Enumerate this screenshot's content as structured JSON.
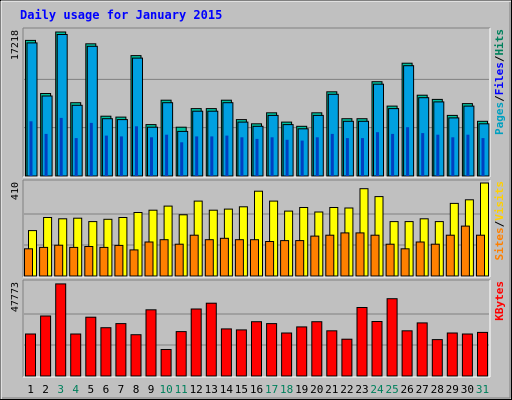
{
  "chart_data": [
    {
      "type": "bar",
      "title": "Daily usage for January 2015",
      "panel": "top",
      "ylabel_parts": [
        "Pages",
        "/",
        "Files",
        "/",
        "Hits"
      ],
      "ymax_label": "17218",
      "ylim": [
        0,
        17218
      ],
      "categories": [
        "1",
        "2",
        "3",
        "4",
        "5",
        "6",
        "7",
        "8",
        "9",
        "10",
        "11",
        "12",
        "13",
        "14",
        "15",
        "16",
        "17",
        "18",
        "19",
        "20",
        "21",
        "22",
        "23",
        "24",
        "25",
        "26",
        "27",
        "28",
        "29",
        "30",
        "31"
      ],
      "series": [
        {
          "name": "Hits",
          "color": "#00c0a0",
          "values": [
            16100,
            9800,
            17100,
            8700,
            15700,
            7100,
            7000,
            14300,
            6100,
            9000,
            5800,
            8000,
            8000,
            9000,
            6700,
            6200,
            7500,
            6400,
            5900,
            7500,
            10000,
            6800,
            6800,
            11200,
            8300,
            13400,
            9600,
            9100,
            7200,
            8600,
            6500
          ]
        },
        {
          "name": "Files",
          "color": "#00a0e0",
          "values": [
            15800,
            9500,
            16800,
            8400,
            15400,
            6800,
            6700,
            14000,
            5800,
            8700,
            5300,
            7700,
            7700,
            8700,
            6400,
            5900,
            7200,
            6100,
            5600,
            7200,
            9700,
            6500,
            6500,
            10900,
            8000,
            13100,
            9300,
            8800,
            6900,
            8300,
            6200
          ]
        },
        {
          "name": "Pages",
          "color": "#0040c0",
          "values": [
            6500,
            5000,
            6900,
            4500,
            6300,
            4800,
            4700,
            5900,
            4600,
            4900,
            4000,
            4700,
            4700,
            4800,
            4600,
            4400,
            4600,
            4300,
            4200,
            4600,
            5000,
            4500,
            4500,
            5200,
            5000,
            5800,
            5100,
            4900,
            4600,
            4900,
            4500
          ]
        }
      ]
    },
    {
      "type": "bar",
      "panel": "middle",
      "ylabel_parts": [
        "Sites",
        "/",
        "Visits"
      ],
      "ymax_label": "410",
      "ylim": [
        0,
        410
      ],
      "series": [
        {
          "name": "Visits",
          "color": "#ffff00",
          "values": [
            200,
            258,
            252,
            255,
            240,
            250,
            258,
            280,
            290,
            308,
            270,
            330,
            290,
            295,
            305,
            374,
            330,
            286,
            302,
            282,
            302,
            300,
            385,
            350,
            240,
            240,
            252,
            240,
            320,
            336,
            410
          ]
        },
        {
          "name": "Sites",
          "color": "#ff8000",
          "values": [
            120,
            126,
            136,
            126,
            130,
            126,
            135,
            115,
            150,
            160,
            140,
            180,
            160,
            166,
            160,
            160,
            152,
            156,
            156,
            176,
            180,
            190,
            190,
            180,
            140,
            120,
            150,
            140,
            180,
            220,
            180
          ]
        }
      ]
    },
    {
      "type": "bar",
      "panel": "bottom",
      "ylabel_parts": [
        "KBytes"
      ],
      "ymax_label": "47773",
      "ylim": [
        0,
        47773
      ],
      "series": [
        {
          "name": "KBytes",
          "color": "#ff0000",
          "values": [
            21600,
            30800,
            47300,
            21600,
            30200,
            24800,
            26900,
            21200,
            34000,
            13600,
            22800,
            34400,
            37400,
            24200,
            23700,
            27900,
            26900,
            22100,
            25200,
            27900,
            23200,
            18900,
            35200,
            28000,
            39700,
            23200,
            27300,
            18700,
            22100,
            21600,
            22400
          ]
        }
      ]
    }
  ],
  "day_labels": [
    "1",
    "2",
    "3",
    "4",
    "5",
    "6",
    "7",
    "8",
    "9",
    "10",
    "11",
    "12",
    "13",
    "14",
    "15",
    "16",
    "17",
    "18",
    "19",
    "20",
    "21",
    "22",
    "23",
    "24",
    "25",
    "26",
    "27",
    "28",
    "29",
    "30",
    "31"
  ],
  "weekend_days": [
    3,
    4,
    10,
    11,
    17,
    18,
    24,
    25,
    31
  ],
  "colors": {
    "background": "#c0c0c0",
    "title": "#0000ff",
    "weekday_label": "#000000",
    "weekend_label": "#00805c",
    "pages_label": "#00a0c0",
    "files_label": "#0000ff",
    "hits_label": "#00805c",
    "sites_label": "#ff8000",
    "visits_label": "#ffd000",
    "kbytes_label": "#ff0000"
  }
}
